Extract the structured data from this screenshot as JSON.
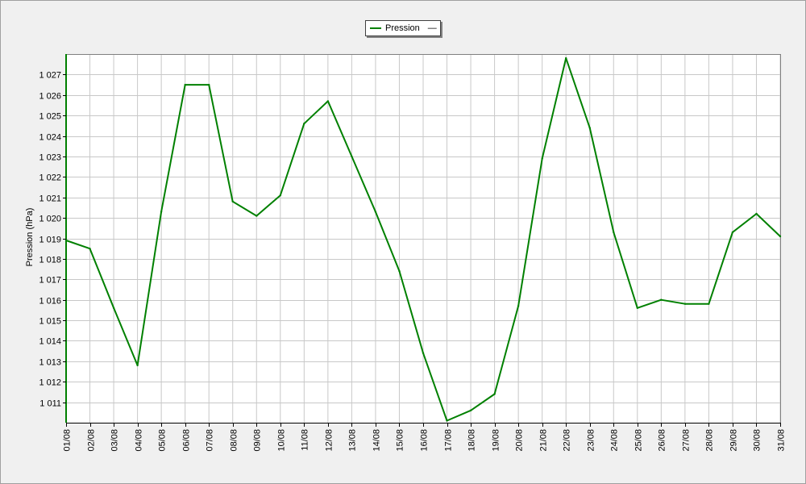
{
  "legend": {
    "series_label": "Pression",
    "dash": "—"
  },
  "chart_data": {
    "type": "line",
    "title": "",
    "xlabel": "",
    "ylabel": "Pression (hPa)",
    "ylim": [
      1010,
      1028
    ],
    "grid": true,
    "legend_position": "top-center",
    "x": [
      "01/08",
      "02/08",
      "03/08",
      "04/08",
      "05/08",
      "06/08",
      "07/08",
      "08/08",
      "09/08",
      "10/08",
      "11/08",
      "12/08",
      "13/08",
      "14/08",
      "15/08",
      "16/08",
      "17/08",
      "18/08",
      "19/08",
      "20/08",
      "21/08",
      "22/08",
      "23/08",
      "24/08",
      "25/08",
      "26/08",
      "27/08",
      "28/08",
      "29/08",
      "30/08",
      "31/08"
    ],
    "yticks": [
      1011,
      1012,
      1013,
      1014,
      1015,
      1016,
      1017,
      1018,
      1019,
      1020,
      1021,
      1022,
      1023,
      1024,
      1025,
      1026,
      1027
    ],
    "ytick_labels": [
      "1 011",
      "1 012",
      "1 013",
      "1 014",
      "1 015",
      "1 016",
      "1 017",
      "1 018",
      "1 019",
      "1 020",
      "1 021",
      "1 022",
      "1 023",
      "1 024",
      "1 025",
      "1 026",
      "1 027"
    ],
    "series": [
      {
        "name": "Pression",
        "color": "#008000",
        "values": [
          1018.9,
          1018.5,
          1015.6,
          1012.8,
          1020.3,
          1026.5,
          1026.5,
          1020.8,
          1020.1,
          1021.1,
          1024.6,
          1025.7,
          1023.0,
          1020.3,
          1017.4,
          1013.4,
          1010.1,
          1010.6,
          1011.4,
          1015.7,
          1022.9,
          1027.8,
          1024.4,
          1019.3,
          1015.6,
          1016.0,
          1015.8,
          1015.8,
          1019.3,
          1020.2,
          1019.1
        ]
      }
    ]
  }
}
